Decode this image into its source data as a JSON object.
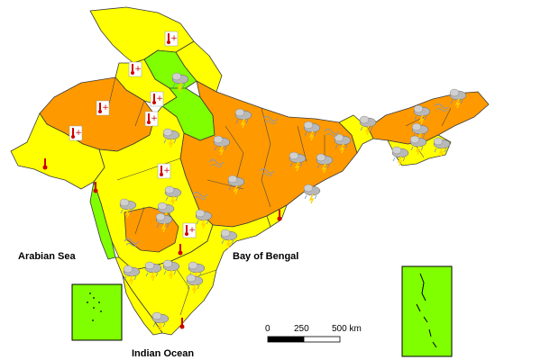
{
  "labels": {
    "arabian_sea": "Arabian Sea",
    "bay_of_bengal": "Bay of Bengal",
    "indian_ocean": "Indian Ocean"
  },
  "scale": {
    "tick_0": "0",
    "tick_1": "250",
    "tick_2": "500 km"
  },
  "colors": {
    "yellow": "#ffff00",
    "orange": "#ff9900",
    "green": "#80ff00",
    "heat_red": "#cc0000",
    "cold_blue": "#6699ff"
  },
  "icons": {
    "temperature_rise_fall": "thermometer-arrows-icon",
    "thunderstorm": "thunder-cloud-icon",
    "hot_temperature": "red-thermometer-icon",
    "dust": "dust-swirl-icon"
  }
}
